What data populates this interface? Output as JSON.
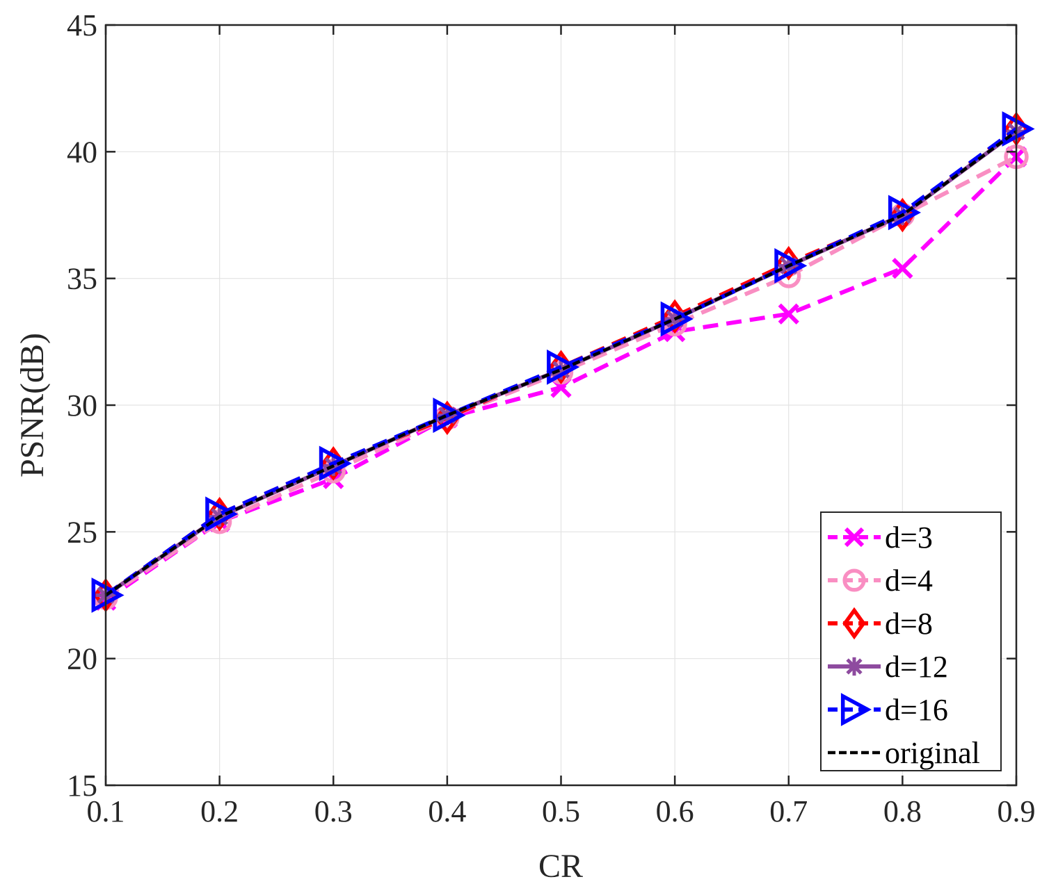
{
  "chart_data": {
    "type": "line",
    "xlabel": "CR",
    "ylabel": "PSNR(dB)",
    "xlim": [
      0.1,
      0.9
    ],
    "ylim": [
      15,
      45
    ],
    "xticks": [
      0.1,
      0.2,
      0.3,
      0.4,
      0.5,
      0.6,
      0.7,
      0.8,
      0.9
    ],
    "xtick_labels": [
      "0.1",
      "0.2",
      "0.3",
      "0.4",
      "0.5",
      "0.6",
      "0.7",
      "0.8",
      "0.9"
    ],
    "yticks": [
      15,
      20,
      25,
      30,
      35,
      40,
      45
    ],
    "ytick_labels": [
      "15",
      "20",
      "25",
      "30",
      "35",
      "40",
      "45"
    ],
    "grid": true,
    "legend_position": "bottom-right",
    "x": [
      0.1,
      0.2,
      0.3,
      0.4,
      0.5,
      0.6,
      0.7,
      0.8,
      0.9
    ],
    "series": [
      {
        "name": "d=3",
        "color": "#FF00FF",
        "marker": "x",
        "line": "dashed",
        "values": [
          22.3,
          25.4,
          27.1,
          29.5,
          30.7,
          32.9,
          33.6,
          35.4,
          39.8
        ]
      },
      {
        "name": "d=4",
        "color": "#F98EC2",
        "marker": "circle",
        "line": "dashed",
        "values": [
          22.4,
          25.4,
          27.4,
          29.5,
          31.3,
          33.2,
          35.1,
          37.5,
          39.8
        ]
      },
      {
        "name": "d=8",
        "color": "#FF0000",
        "marker": "diamond",
        "line": "dashed",
        "values": [
          22.5,
          25.7,
          27.7,
          29.5,
          31.5,
          33.5,
          35.6,
          37.5,
          40.9
        ]
      },
      {
        "name": "d=12",
        "color": "#8E4B9F",
        "marker": "asterisk",
        "line": "solid",
        "values": [
          22.5,
          25.6,
          27.6,
          29.6,
          31.4,
          33.4,
          35.5,
          37.5,
          40.8
        ]
      },
      {
        "name": "d=16",
        "color": "#0000FF",
        "marker": "triangle-right",
        "line": "dashed",
        "values": [
          22.5,
          25.7,
          27.7,
          29.6,
          31.5,
          33.4,
          35.5,
          37.6,
          40.9
        ]
      },
      {
        "name": "original",
        "color": "#000000",
        "marker": "none",
        "line": "dashed",
        "values": [
          22.5,
          25.6,
          27.6,
          29.6,
          31.4,
          33.4,
          35.5,
          37.5,
          40.8
        ]
      }
    ]
  }
}
